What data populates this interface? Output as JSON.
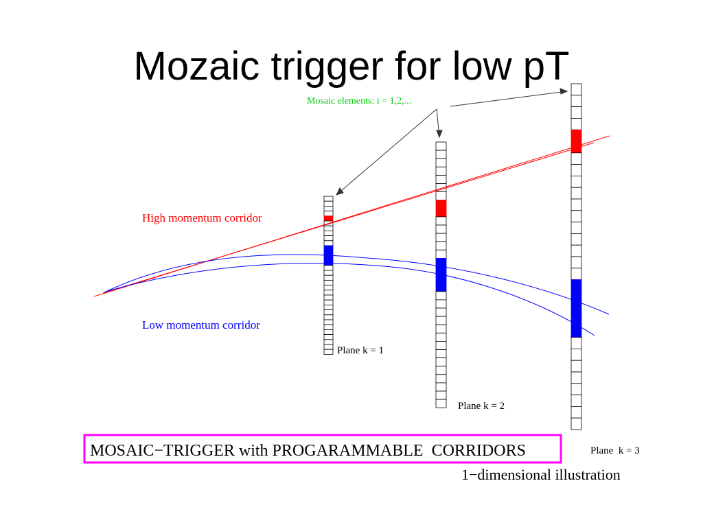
{
  "title": "Mozaic trigger for low pT",
  "labels": {
    "mosaic_elements": "Mosaic elements: i = 1,2,...",
    "high_corridor": "High momentum corridor",
    "low_corridor": "Low momentum corridor",
    "plane_1": "Plane k = 1",
    "plane_2": "Plane k = 2",
    "plane_3": "Plane  k = 3",
    "banner": "MOSAIC−TRIGGER with PROGARAMMABLE  CORRIDORS",
    "caption": "1−dimensional illustration"
  },
  "colors": {
    "high": "#ff0000",
    "low": "#0000ff",
    "highlight": "#00cc00",
    "banner_border": "#ff00ff"
  },
  "planes": [
    {
      "plane": 1,
      "elements": 32,
      "high_cells": [
        4
      ],
      "low_cells": [
        10,
        11,
        12,
        13
      ]
    },
    {
      "plane": 2,
      "elements": 32,
      "high_cells": [
        7,
        8
      ],
      "low_cells": [
        14,
        15,
        16,
        17
      ]
    },
    {
      "plane": 3,
      "elements": 30,
      "high_cells": [
        4,
        5
      ],
      "low_cells": [
        17,
        18,
        19,
        20,
        21
      ]
    }
  ]
}
